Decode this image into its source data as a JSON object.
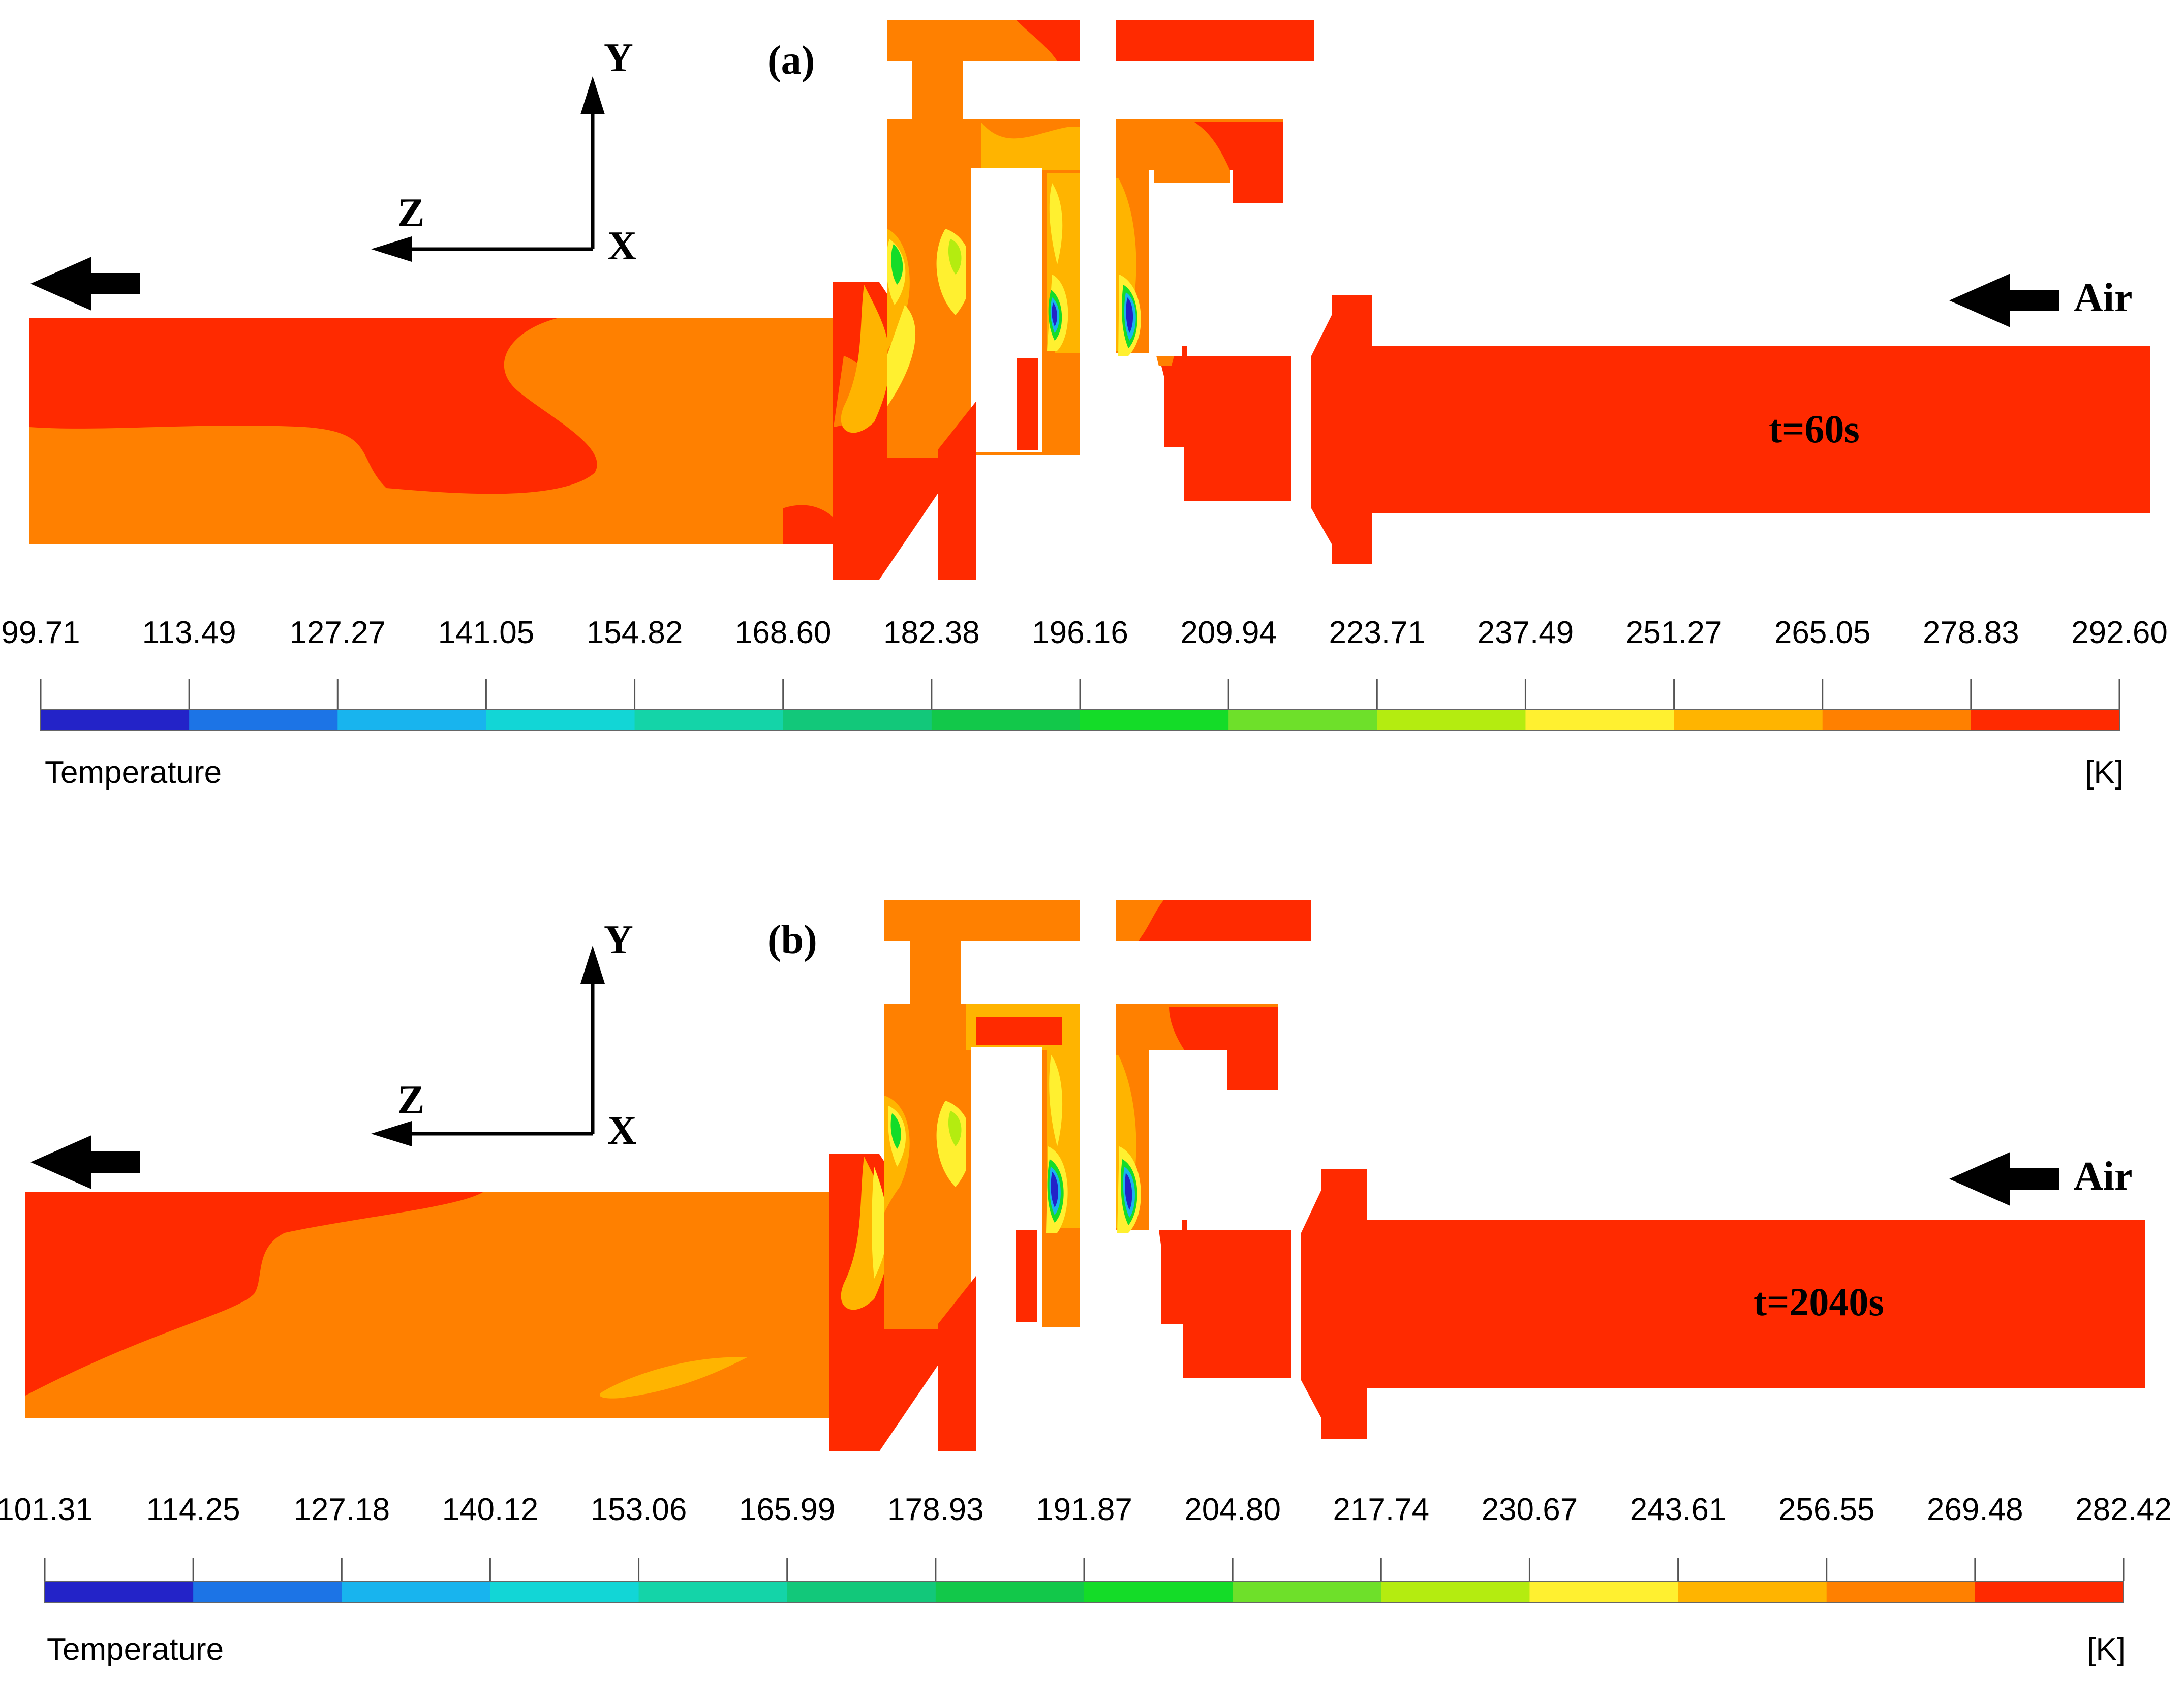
{
  "panels": [
    {
      "id": "a",
      "label": "(a)",
      "time": "t=60s",
      "inlet": "Air",
      "axes": {
        "y": "Y",
        "z": "Z",
        "x": "X"
      },
      "legend": {
        "title": "Temperature",
        "unit": "[K]",
        "ticks": [
          "99.71",
          "113.49",
          "127.27",
          "141.05",
          "154.82",
          "168.60",
          "182.38",
          "196.16",
          "209.94",
          "223.71",
          "237.49",
          "251.27",
          "265.05",
          "278.83",
          "292.60"
        ]
      }
    },
    {
      "id": "b",
      "label": "(b)",
      "time": "t=2040s",
      "inlet": "Air",
      "axes": {
        "y": "Y",
        "z": "Z",
        "x": "X"
      },
      "legend": {
        "title": "Temperature",
        "unit": "[K]",
        "ticks": [
          "101.31",
          "114.25",
          "127.18",
          "140.12",
          "153.06",
          "165.99",
          "178.93",
          "191.87",
          "204.80",
          "217.74",
          "230.67",
          "243.61",
          "256.55",
          "269.48",
          "282.42"
        ]
      }
    }
  ],
  "colormap": [
    "#2323c8",
    "#1c74e6",
    "#18b4ee",
    "#12d6d6",
    "#14d4a8",
    "#12c87a",
    "#12c84a",
    "#14dc28",
    "#6ee02a",
    "#b4ec10",
    "#fff030",
    "#ffb400",
    "#ff8000",
    "#ff2a00"
  ],
  "colors": {
    "hot": "#ff2a00",
    "warm": "#ff8000",
    "mid": "#ffb400",
    "yellow": "#fff030",
    "lime": "#b4ec10",
    "green": "#14dc28",
    "cyan": "#18b4ee",
    "blue": "#1c74e6",
    "deep": "#2323c8"
  }
}
